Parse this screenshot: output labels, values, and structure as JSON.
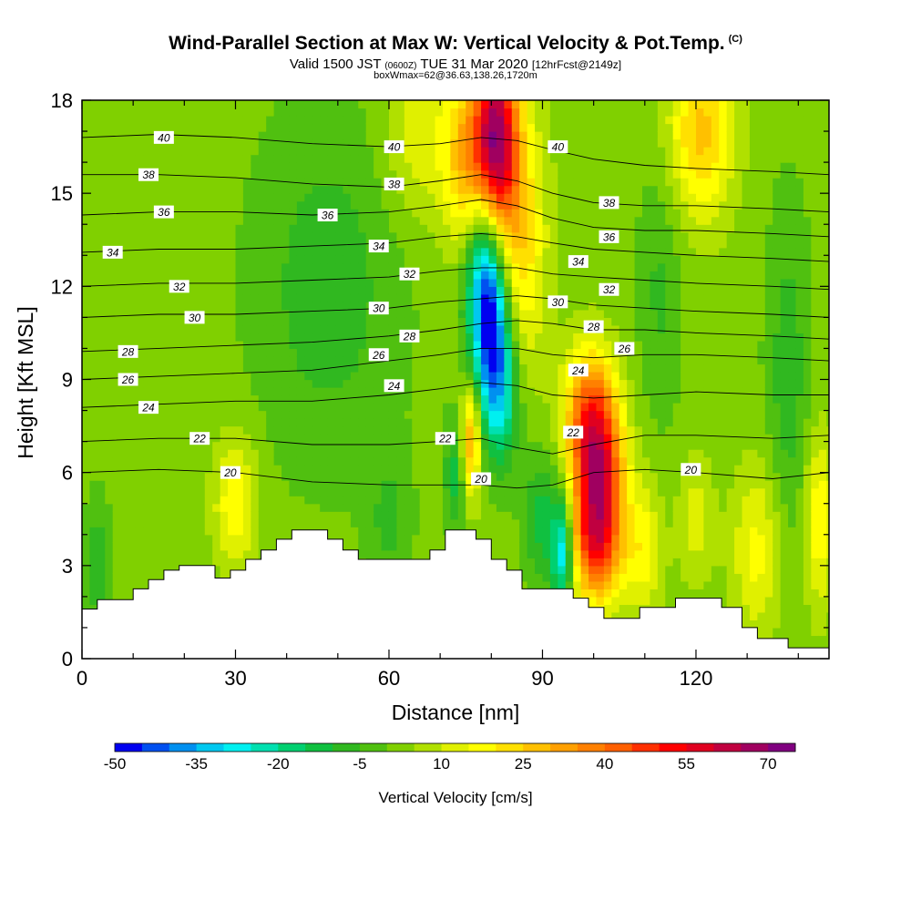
{
  "header": {
    "title": "Wind-Parallel Section at Max W: Vertical Velocity & Pot.Temp.",
    "copyright": "(C)",
    "valid_prefix": "Valid 1500 JST",
    "valid_zulu": "(0600Z)",
    "valid_date": "TUE 31 Mar 2020",
    "forecast_info": "[12hrFcst@2149z]",
    "box_info": "boxWmax=62@36.63,138.26,1720m"
  },
  "chart_data": {
    "type": "heatmap",
    "xlabel": "Distance [nm]",
    "ylabel": "Height [Kft MSL]",
    "xlim": [
      0,
      146
    ],
    "ylim": [
      0,
      18
    ],
    "x_ticks": [
      0,
      30,
      60,
      90,
      120
    ],
    "y_ticks": [
      0,
      3,
      6,
      9,
      12,
      15,
      18
    ],
    "colorbar": {
      "title": "Vertical Velocity [cm/s]",
      "levels": [
        -50,
        -45,
        -40,
        -35,
        -30,
        -25,
        -20,
        -15,
        -10,
        -5,
        0,
        5,
        10,
        15,
        20,
        25,
        30,
        35,
        40,
        45,
        50,
        55,
        60,
        65,
        70,
        75
      ],
      "tick_labels": [
        "-50",
        "-35",
        "-20",
        "-5",
        "10",
        "25",
        "40",
        "55",
        "70"
      ],
      "tick_values": [
        -50,
        -35,
        -20,
        -5,
        10,
        25,
        40,
        55,
        70
      ],
      "colors": [
        "#0000f0",
        "#0050f0",
        "#0090f0",
        "#00c8f0",
        "#00f0f0",
        "#00e0b0",
        "#00d070",
        "#10c040",
        "#30b820",
        "#50c010",
        "#80d000",
        "#b0e000",
        "#e0f000",
        "#ffff00",
        "#ffe000",
        "#ffc000",
        "#ffa000",
        "#ff8000",
        "#ff6000",
        "#ff3000",
        "#ff0000",
        "#e00020",
        "#c00040",
        "#a00060",
        "#800080"
      ]
    },
    "terrain": [
      [
        0,
        1.6
      ],
      [
        3,
        1.6
      ],
      [
        3,
        1.9
      ],
      [
        10,
        1.9
      ],
      [
        10,
        2.25
      ],
      [
        13,
        2.25
      ],
      [
        13,
        2.55
      ],
      [
        16,
        2.55
      ],
      [
        16,
        2.85
      ],
      [
        19,
        2.85
      ],
      [
        19,
        3.0
      ],
      [
        26,
        3.0
      ],
      [
        26,
        2.6
      ],
      [
        29,
        2.6
      ],
      [
        29,
        2.85
      ],
      [
        32,
        2.85
      ],
      [
        32,
        3.2
      ],
      [
        35,
        3.2
      ],
      [
        35,
        3.5
      ],
      [
        38,
        3.5
      ],
      [
        38,
        3.85
      ],
      [
        41,
        3.85
      ],
      [
        41,
        4.15
      ],
      [
        48,
        4.15
      ],
      [
        48,
        3.85
      ],
      [
        51,
        3.85
      ],
      [
        51,
        3.5
      ],
      [
        54,
        3.5
      ],
      [
        54,
        3.2
      ],
      [
        68,
        3.2
      ],
      [
        68,
        3.5
      ],
      [
        71,
        3.5
      ],
      [
        71,
        4.15
      ],
      [
        77,
        4.15
      ],
      [
        77,
        3.85
      ],
      [
        80,
        3.85
      ],
      [
        80,
        3.2
      ],
      [
        83,
        3.2
      ],
      [
        83,
        2.85
      ],
      [
        86,
        2.85
      ],
      [
        86,
        2.25
      ],
      [
        96,
        2.25
      ],
      [
        96,
        1.95
      ],
      [
        99,
        1.95
      ],
      [
        99,
        1.65
      ],
      [
        102,
        1.65
      ],
      [
        102,
        1.3
      ],
      [
        109,
        1.3
      ],
      [
        109,
        1.65
      ],
      [
        116,
        1.65
      ],
      [
        116,
        1.95
      ],
      [
        125,
        1.95
      ],
      [
        125,
        1.65
      ],
      [
        129,
        1.65
      ],
      [
        129,
        1.0
      ],
      [
        132,
        1.0
      ],
      [
        132,
        0.65
      ],
      [
        138,
        0.65
      ],
      [
        138,
        0.35
      ],
      [
        146,
        0.35
      ]
    ],
    "theta_levels": [
      20,
      22,
      24,
      26,
      28,
      30,
      32,
      34,
      36,
      38,
      40
    ],
    "theta_heights": {
      "x": [
        0,
        15,
        30,
        45,
        60,
        70,
        78,
        85,
        92,
        100,
        110,
        120,
        135,
        146
      ],
      "20": [
        6.0,
        6.1,
        6.0,
        5.7,
        5.6,
        5.6,
        5.6,
        5.5,
        5.6,
        6.0,
        6.1,
        6.0,
        5.8,
        6.0
      ],
      "22": [
        7.0,
        7.1,
        7.1,
        6.9,
        6.9,
        7.0,
        7.1,
        6.8,
        6.6,
        6.9,
        7.2,
        7.2,
        7.1,
        7.2
      ],
      "24": [
        8.1,
        8.2,
        8.3,
        8.3,
        8.5,
        8.7,
        8.9,
        8.8,
        8.5,
        8.4,
        8.5,
        8.6,
        8.5,
        8.5
      ],
      "26": [
        9.0,
        9.1,
        9.2,
        9.3,
        9.6,
        9.8,
        10.0,
        10.0,
        9.8,
        9.7,
        9.8,
        9.8,
        9.7,
        9.6
      ],
      "28": [
        9.9,
        10.0,
        10.1,
        10.2,
        10.4,
        10.6,
        10.8,
        10.9,
        10.8,
        10.6,
        10.6,
        10.5,
        10.4,
        10.3
      ],
      "30": [
        11.0,
        11.1,
        11.1,
        11.2,
        11.3,
        11.5,
        11.6,
        11.7,
        11.6,
        11.4,
        11.3,
        11.2,
        11.1,
        11.0
      ],
      "32": [
        12.0,
        12.1,
        12.1,
        12.2,
        12.3,
        12.5,
        12.6,
        12.6,
        12.4,
        12.3,
        12.2,
        12.1,
        12.0,
        11.9
      ],
      "34": [
        13.1,
        13.2,
        13.2,
        13.3,
        13.4,
        13.6,
        13.7,
        13.6,
        13.4,
        13.2,
        13.1,
        13.0,
        12.9,
        12.8
      ],
      "36": [
        14.3,
        14.4,
        14.4,
        14.3,
        14.4,
        14.6,
        14.8,
        14.6,
        14.2,
        13.9,
        13.8,
        13.8,
        13.7,
        13.6
      ],
      "38": [
        15.6,
        15.6,
        15.5,
        15.3,
        15.2,
        15.4,
        15.6,
        15.4,
        15.0,
        14.7,
        14.6,
        14.6,
        14.5,
        14.4
      ],
      "40": [
        16.8,
        16.9,
        16.8,
        16.6,
        16.5,
        16.6,
        16.8,
        16.7,
        16.4,
        16.1,
        15.9,
        15.8,
        15.7,
        15.6
      ]
    },
    "contour_labels": [
      {
        "text": "40",
        "x": 16,
        "y": 16.8
      },
      {
        "text": "38",
        "x": 13,
        "y": 15.6
      },
      {
        "text": "36",
        "x": 16,
        "y": 14.4
      },
      {
        "text": "34",
        "x": 6,
        "y": 13.1
      },
      {
        "text": "32",
        "x": 19,
        "y": 12.0
      },
      {
        "text": "30",
        "x": 22,
        "y": 11.0
      },
      {
        "text": "28",
        "x": 9,
        "y": 9.9
      },
      {
        "text": "26",
        "x": 9,
        "y": 9.0
      },
      {
        "text": "24",
        "x": 13,
        "y": 8.1
      },
      {
        "text": "22",
        "x": 23,
        "y": 7.1
      },
      {
        "text": "20",
        "x": 29,
        "y": 6.0
      },
      {
        "text": "40",
        "x": 61,
        "y": 16.5
      },
      {
        "text": "38",
        "x": 61,
        "y": 15.3
      },
      {
        "text": "36",
        "x": 48,
        "y": 14.3
      },
      {
        "text": "34",
        "x": 58,
        "y": 13.3
      },
      {
        "text": "32",
        "x": 64,
        "y": 12.4
      },
      {
        "text": "30",
        "x": 58,
        "y": 11.3
      },
      {
        "text": "28",
        "x": 64,
        "y": 10.4
      },
      {
        "text": "26",
        "x": 58,
        "y": 9.8
      },
      {
        "text": "24",
        "x": 61,
        "y": 8.8
      },
      {
        "text": "22",
        "x": 71,
        "y": 7.1
      },
      {
        "text": "20",
        "x": 78,
        "y": 5.8
      },
      {
        "text": "40",
        "x": 93,
        "y": 16.5
      },
      {
        "text": "38",
        "x": 103,
        "y": 14.7
      },
      {
        "text": "36",
        "x": 103,
        "y": 13.6
      },
      {
        "text": "34",
        "x": 97,
        "y": 12.8
      },
      {
        "text": "32",
        "x": 103,
        "y": 11.9
      },
      {
        "text": "30",
        "x": 93,
        "y": 11.5
      },
      {
        "text": "28",
        "x": 100,
        "y": 10.7
      },
      {
        "text": "26",
        "x": 106,
        "y": 10.0
      },
      {
        "text": "24",
        "x": 97,
        "y": 9.3
      },
      {
        "text": "22",
        "x": 96,
        "y": 7.3
      },
      {
        "text": "20",
        "x": 119,
        "y": 6.1
      }
    ],
    "w_features": [
      {
        "x": 81,
        "y": 16.8,
        "w": 60,
        "sx": 3.0,
        "sy": 2.2
      },
      {
        "x": 76,
        "y": 16.0,
        "w": 30,
        "sx": 3.5,
        "sy": 2.0
      },
      {
        "x": 86,
        "y": 13.5,
        "w": 20,
        "sx": 3.5,
        "sy": 3.0
      },
      {
        "x": 80,
        "y": 11.0,
        "w": -40,
        "sx": 2.4,
        "sy": 2.0
      },
      {
        "x": 78,
        "y": 13.0,
        "w": -25,
        "sx": 2.5,
        "sy": 2.5
      },
      {
        "x": 82,
        "y": 8.5,
        "w": -25,
        "sx": 2.5,
        "sy": 1.6
      },
      {
        "x": 76,
        "y": 7.0,
        "w": 30,
        "sx": 1.4,
        "sy": 1.3
      },
      {
        "x": 73,
        "y": 6.0,
        "w": -15,
        "sx": 1.5,
        "sy": 1.2
      },
      {
        "x": 94,
        "y": 3.5,
        "w": -35,
        "sx": 1.5,
        "sy": 1.2
      },
      {
        "x": 90,
        "y": 4.5,
        "w": -15,
        "sx": 2.5,
        "sy": 1.5
      },
      {
        "x": 101,
        "y": 5.5,
        "w": 55,
        "sx": 3.5,
        "sy": 2.0
      },
      {
        "x": 99,
        "y": 8.0,
        "w": 30,
        "sx": 3.5,
        "sy": 1.5
      },
      {
        "x": 100,
        "y": 3.5,
        "w": 20,
        "sx": 4.0,
        "sy": 1.2
      },
      {
        "x": 30,
        "y": 5.0,
        "w": 18,
        "sx": 3.0,
        "sy": 1.5
      },
      {
        "x": 121,
        "y": 17.0,
        "w": 25,
        "sx": 4.5,
        "sy": 2.0
      },
      {
        "x": 66,
        "y": 17.0,
        "w": 12,
        "sx": 5.0,
        "sy": 2.0
      },
      {
        "x": 132,
        "y": 3.5,
        "w": 15,
        "sx": 3.5,
        "sy": 2.0
      },
      {
        "x": 144,
        "y": 4.5,
        "w": 18,
        "sx": 2.0,
        "sy": 2.0
      },
      {
        "x": 110,
        "y": 3.5,
        "w": 15,
        "sx": 2.5,
        "sy": 1.5
      },
      {
        "x": 120,
        "y": 4.5,
        "w": 10,
        "sx": 2.5,
        "sy": 1.5
      },
      {
        "x": 48,
        "y": 12.0,
        "w": -10,
        "sx": 10.0,
        "sy": 4.0
      },
      {
        "x": 3,
        "y": 3.0,
        "w": -10,
        "sx": 2.0,
        "sy": 1.5
      },
      {
        "x": 60,
        "y": 4.5,
        "w": -8,
        "sx": 3.0,
        "sy": 1.5
      },
      {
        "x": 138,
        "y": 9.0,
        "w": -10,
        "sx": 3.0,
        "sy": 4.0
      },
      {
        "x": 113,
        "y": 12.0,
        "w": -8,
        "sx": 3.0,
        "sy": 3.0
      }
    ]
  }
}
